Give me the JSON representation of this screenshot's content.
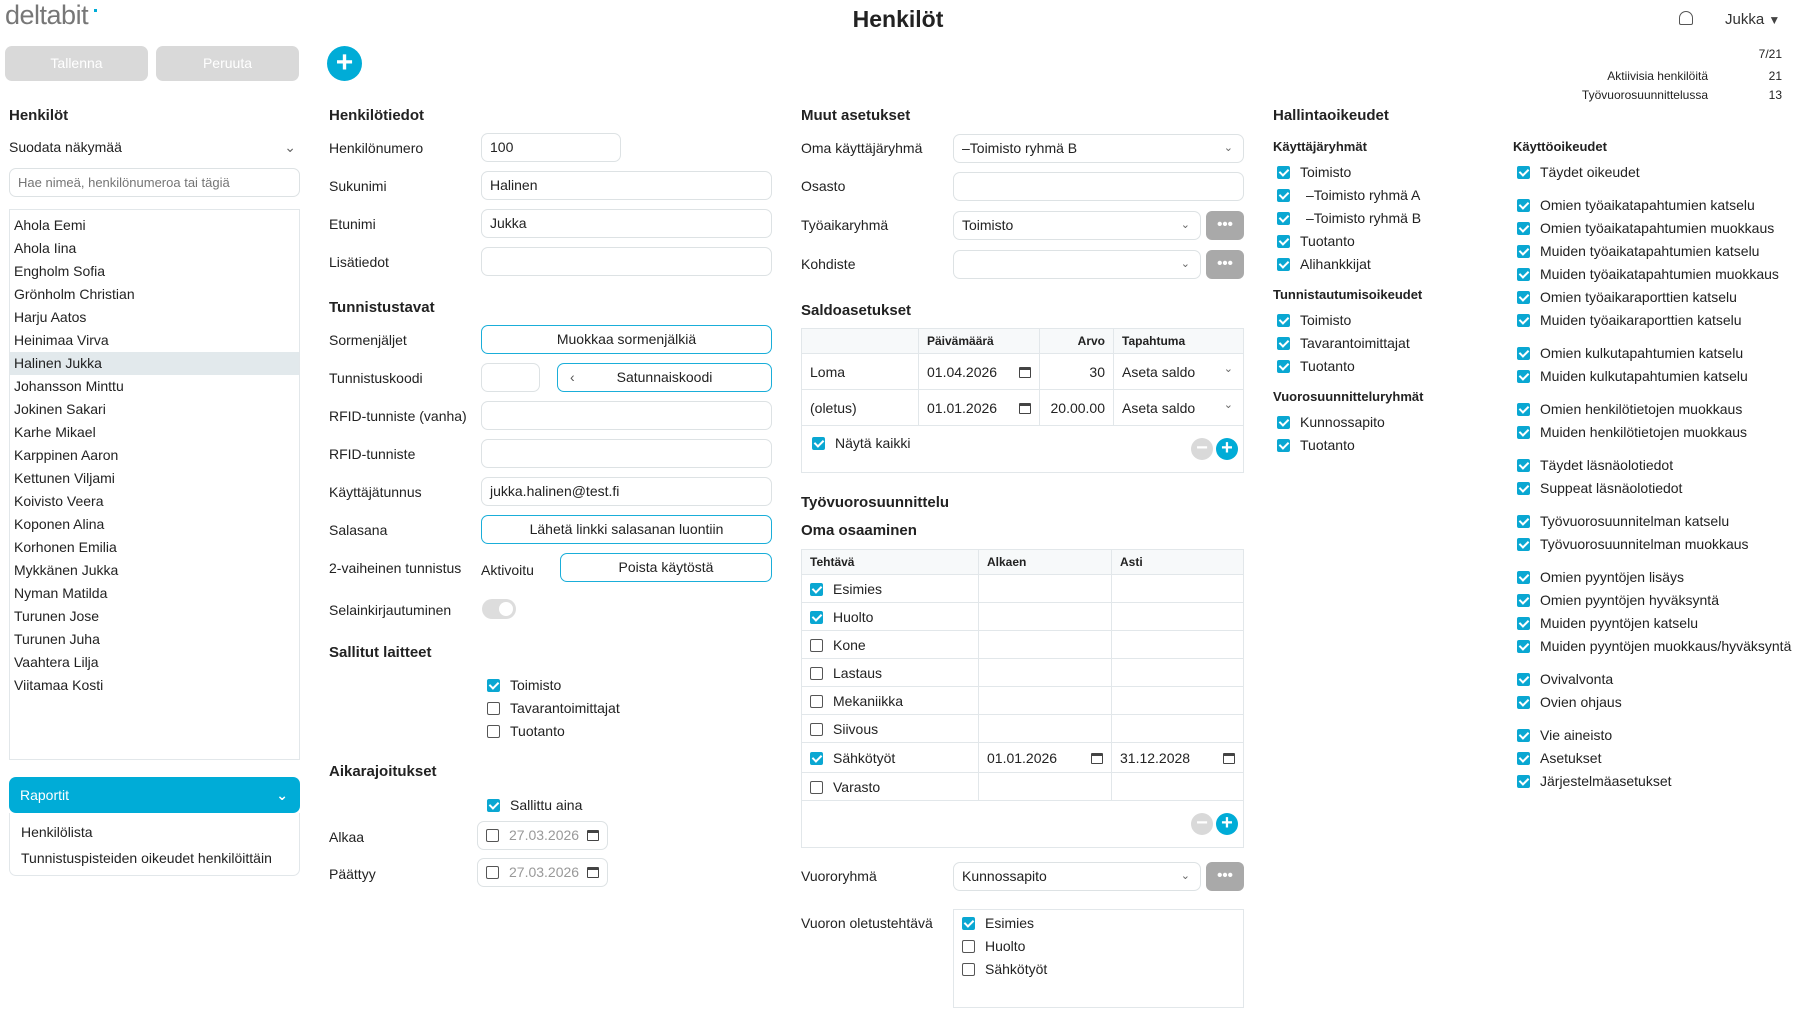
{
  "app": {
    "logo": "deltabit",
    "title": "Henkilöt",
    "user": "Jukka",
    "icons": {
      "bell": "bell-icon",
      "user_menu": "caret-down-icon"
    }
  },
  "stats": {
    "page": "7/21",
    "rows": [
      {
        "label": "Aktiivisia henkilöitä",
        "value": "21"
      },
      {
        "label": "Työvuorosuunnittelussa",
        "value": "13"
      }
    ]
  },
  "toolbar": {
    "save": "Tallenna",
    "cancel": "Peruuta",
    "add_icon": "plus-icon"
  },
  "colors": {
    "accent": "#00acd7",
    "disabled_button": "#d9d9d9",
    "selected_row": "#e2e9ec"
  },
  "people": {
    "heading": "Henkilöt",
    "filter": "Suodata näkymää",
    "search_placeholder": "Hae nimeä, henkilönumeroa tai tägiä",
    "selected": "Halinen Jukka",
    "items": [
      "Ahola Eemi",
      "Ahola Iina",
      "Engholm Sofia",
      "Grönholm Christian",
      "Harju Aatos",
      "Heinimaa Virva",
      "Halinen Jukka",
      "Johansson Minttu",
      "Jokinen Sakari",
      "Karhe Mikael",
      "Karppinen Aaron",
      "Kettunen Viljami",
      "Koivisto Veera",
      "Koponen Alina",
      "Korhonen Emilia",
      "Mykkänen Jukka",
      "Nyman Matilda",
      "Turunen Jose",
      "Turunen Juha",
      "Vaahtera Lilja",
      "Viitamaa Kosti"
    ]
  },
  "reports": {
    "title": "Raportit",
    "items": [
      "Henkilölista",
      "Tunnistuspisteiden oikeudet henkilöittäin"
    ]
  },
  "details": {
    "heading": "Henkilötiedot",
    "number": {
      "label": "Henkilönumero",
      "value": "100"
    },
    "lastname": {
      "label": "Sukunimi",
      "value": "Halinen"
    },
    "firstname": {
      "label": "Etunimi",
      "value": "Jukka"
    },
    "extra": {
      "label": "Lisätiedot",
      "value": ""
    }
  },
  "auth": {
    "heading": "Tunnistustavat",
    "fingerprints": {
      "label": "Sormenjäljet",
      "button": "Muokkaa sormenjälkiä"
    },
    "code": {
      "label": "Tunnistuskoodi",
      "value": "",
      "button": "Satunnaiskoodi"
    },
    "rfid_old": {
      "label": "RFID-tunniste (vanha)",
      "value": ""
    },
    "rfid": {
      "label": "RFID-tunniste",
      "value": ""
    },
    "username": {
      "label": "Käyttäjätunnus",
      "value": "jukka.halinen@test.fi"
    },
    "password": {
      "label": "Salasana",
      "button": "Lähetä linkki salasanan luontiin"
    },
    "twofa": {
      "label": "2-vaiheinen tunnistus",
      "status": "Aktivoitu",
      "button": "Poista käytöstä"
    },
    "browser": {
      "label": "Selainkirjautuminen",
      "enabled": false
    }
  },
  "devices": {
    "heading": "Sallitut laitteet",
    "items": [
      {
        "label": "Toimisto",
        "checked": true
      },
      {
        "label": "Tavarantoimittajat",
        "checked": false
      },
      {
        "label": "Tuotanto",
        "checked": false
      }
    ]
  },
  "time": {
    "heading": "Aikarajoitukset",
    "always": {
      "label": "Sallittu aina",
      "checked": true
    },
    "start": {
      "label": "Alkaa",
      "value": "27.03.2026",
      "checked": false
    },
    "end": {
      "label": "Päättyy",
      "value": "27.03.2026",
      "checked": false
    }
  },
  "other": {
    "heading": "Muut asetukset",
    "group": {
      "label": "Oma käyttäjäryhmä",
      "value": "–Toimisto ryhmä B"
    },
    "dept": {
      "label": "Osasto",
      "value": ""
    },
    "worktime": {
      "label": "Työaikaryhmä",
      "value": "Toimisto"
    },
    "target": {
      "label": "Kohdiste",
      "value": ""
    },
    "more": "•••"
  },
  "balance": {
    "heading": "Saldoasetukset",
    "columns": [
      "",
      "Päivämäärä",
      "Arvo",
      "Tapahtuma"
    ],
    "rows": [
      {
        "name": "Loma",
        "date": "01.04.2026",
        "value": "30",
        "event": "Aseta saldo"
      },
      {
        "name": "(oletus)",
        "date": "01.01.2026",
        "value": "20.00.00",
        "event": "Aseta saldo"
      }
    ],
    "show_all": {
      "label": "Näytä kaikki",
      "checked": true
    }
  },
  "shift": {
    "heading": "Työvuorosuunnittelu",
    "skills_heading": "Oma osaaminen",
    "columns": [
      "Tehtävä",
      "Alkaen",
      "Asti"
    ],
    "rows": [
      {
        "task": "Esimies",
        "checked": true,
        "from": "",
        "to": ""
      },
      {
        "task": "Huolto",
        "checked": true,
        "from": "",
        "to": ""
      },
      {
        "task": "Kone",
        "checked": false,
        "from": "",
        "to": ""
      },
      {
        "task": "Lastaus",
        "checked": false,
        "from": "",
        "to": ""
      },
      {
        "task": "Mekaniikka",
        "checked": false,
        "from": "",
        "to": ""
      },
      {
        "task": "Siivous",
        "checked": false,
        "from": "",
        "to": ""
      },
      {
        "task": "Sähkötyöt",
        "checked": true,
        "from": "01.01.2026",
        "to": "31.12.2028"
      },
      {
        "task": "Varasto",
        "checked": false,
        "from": "",
        "to": ""
      }
    ],
    "group": {
      "label": "Vuororyhmä",
      "value": "Kunnossapito"
    },
    "default_task": {
      "label": "Vuoron oletustehtävä",
      "items": [
        {
          "label": "Esimies",
          "checked": true
        },
        {
          "label": "Huolto",
          "checked": false
        },
        {
          "label": "Sähkötyöt",
          "checked": false
        }
      ]
    }
  },
  "admin": {
    "heading": "Hallintaoikeudet",
    "user_groups": {
      "heading": "Käyttäjäryhmät",
      "items": [
        {
          "label": "Toimisto",
          "checked": true
        },
        {
          "label": "–Toimisto ryhmä A",
          "checked": true
        },
        {
          "label": "–Toimisto ryhmä B",
          "checked": true
        },
        {
          "label": "Tuotanto",
          "checked": true
        },
        {
          "label": "Alihankkijat",
          "checked": true
        }
      ]
    },
    "auth_rights": {
      "heading": "Tunnistautumisoikeudet",
      "items": [
        {
          "label": "Toimisto",
          "checked": true
        },
        {
          "label": "Tavarantoimittajat",
          "checked": true
        },
        {
          "label": "Tuotanto",
          "checked": true
        }
      ]
    },
    "shift_groups": {
      "heading": "Vuorosuunnitteluryhmät",
      "items": [
        {
          "label": "Kunnossapito",
          "checked": true
        },
        {
          "label": "Tuotanto",
          "checked": true
        }
      ]
    },
    "usage": {
      "heading": "Käyttöoikeudet",
      "groups": [
        [
          "Täydet oikeudet"
        ],
        [
          "Omien työaikatapahtumien katselu",
          "Omien työaikatapahtumien muokkaus",
          "Muiden työaikatapahtumien katselu",
          "Muiden työaikatapahtumien muokkaus",
          "Omien työaikaraporttien katselu",
          "Muiden työaikaraporttien katselu"
        ],
        [
          "Omien kulkutapahtumien katselu",
          "Muiden kulkutapahtumien katselu"
        ],
        [
          "Omien henkilötietojen muokkaus",
          "Muiden henkilötietojen muokkaus"
        ],
        [
          "Täydet läsnäolotiedot",
          "Suppeat läsnäolotiedot"
        ],
        [
          "Työvuorosuunnitelman katselu",
          "Työvuorosuunnitelman muokkaus"
        ],
        [
          "Omien pyyntöjen lisäys",
          "Omien pyyntöjen hyväksyntä",
          "Muiden pyyntöjen katselu",
          "Muiden pyyntöjen muokkaus/hyväksyntä"
        ],
        [
          "Ovivalvonta",
          "Ovien ohjaus"
        ],
        [
          "Vie aineisto",
          "Asetukset",
          "Järjestelmäasetukset"
        ]
      ],
      "checked": true
    }
  }
}
